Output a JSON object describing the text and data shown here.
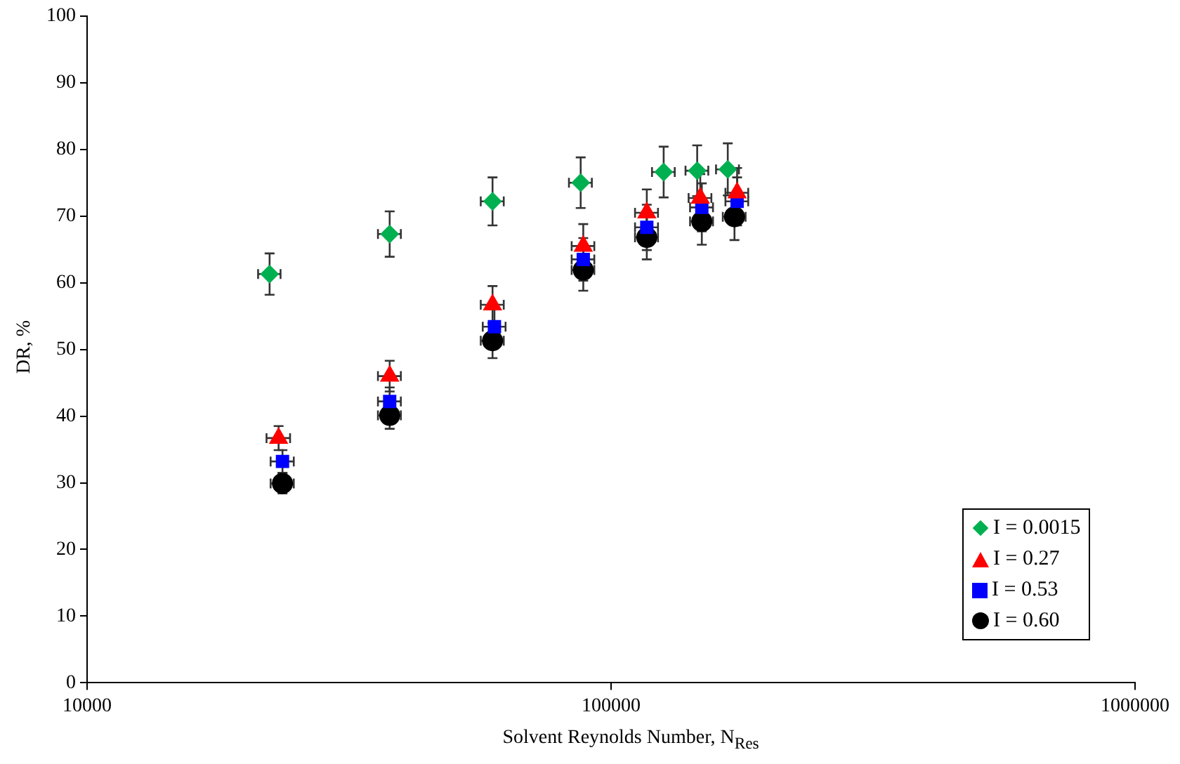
{
  "chart_data": {
    "type": "scatter",
    "xlabel": "Solvent Reynolds Number, N$_{Res}$",
    "ylabel": "DR, %",
    "log": "x",
    "xlim": [
      10000,
      1000000
    ],
    "xticks": [
      10000,
      100000,
      1000000
    ],
    "ylim": [
      0,
      100
    ],
    "yticks": [
      0,
      10,
      20,
      30,
      40,
      50,
      60,
      70,
      80,
      90,
      100
    ],
    "grid": false,
    "legend": "bottom right",
    "series": [
      {
        "name": "I = 0.0015",
        "color": "#00b050",
        "marker": "diamond",
        "x": [
          22300,
          37800,
          59400,
          87500,
          126000,
          146000,
          167000
        ],
        "values": [
          61.3,
          67.3,
          72.2,
          75.0,
          76.6,
          76.8,
          77.0
        ],
        "errors": [
          3.1,
          3.4,
          3.6,
          3.8,
          3.8,
          3.8,
          3.9
        ],
        "xerrors": [
          1100,
          1900,
          3000,
          4400,
          6300,
          7300,
          8400
        ]
      },
      {
        "name": "I = 0.27",
        "color": "#ff0000",
        "marker": "triangle",
        "x": [
          23200,
          37800,
          59400,
          88500,
          117000,
          148000,
          174000
        ],
        "values": [
          36.7,
          46.0,
          56.7,
          65.5,
          70.5,
          72.7,
          73.5
        ],
        "errors": [
          1.8,
          2.3,
          2.8,
          3.3,
          3.5,
          3.6,
          3.7
        ],
        "xerrors": [
          1200,
          1900,
          3000,
          4400,
          5900,
          7400,
          8700
        ]
      },
      {
        "name": "I = 0.53",
        "color": "#0000ff",
        "marker": "square",
        "x": [
          23600,
          37800,
          59900,
          88500,
          117000,
          149000,
          174000
        ],
        "values": [
          33.2,
          42.2,
          53.4,
          63.5,
          68.3,
          71.3,
          72.2
        ],
        "errors": [
          1.7,
          2.1,
          2.7,
          3.2,
          3.4,
          3.6,
          3.6
        ],
        "xerrors": [
          1200,
          1900,
          3000,
          4400,
          5900,
          7500,
          8700
        ]
      },
      {
        "name": "I = 0.60",
        "color": "#000000",
        "marker": "circle",
        "x": [
          23600,
          37800,
          59400,
          88500,
          117000,
          149000,
          172000
        ],
        "values": [
          29.9,
          40.1,
          51.3,
          61.9,
          66.8,
          69.2,
          69.9
        ],
        "errors": [
          1.5,
          2.0,
          2.6,
          3.1,
          3.3,
          3.5,
          3.5
        ],
        "xerrors": [
          1200,
          1900,
          3000,
          4400,
          5900,
          7500,
          8600
        ]
      }
    ]
  }
}
